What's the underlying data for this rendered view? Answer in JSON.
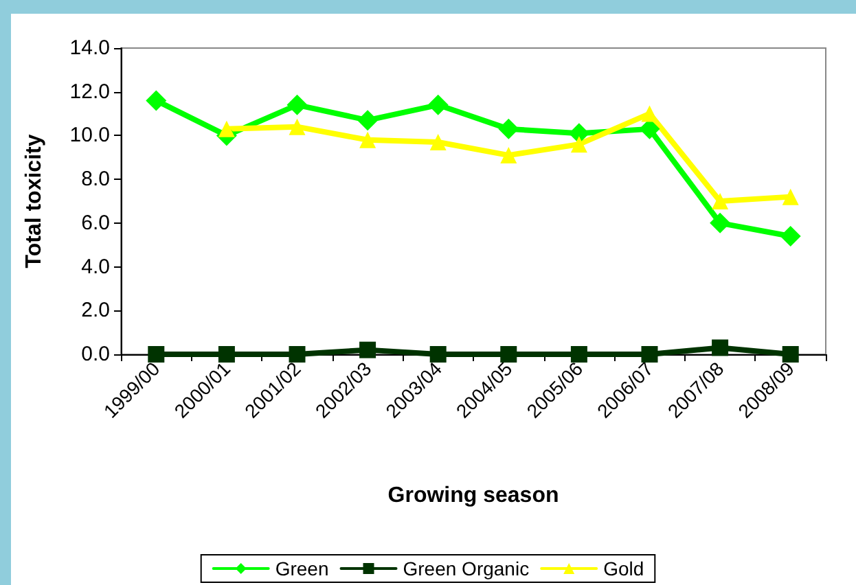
{
  "chart_data": {
    "type": "line",
    "xlabel": "Growing season",
    "ylabel": "Total toxicity",
    "categories": [
      "1999/00",
      "2000/01",
      "2001/02",
      "2002/03",
      "2003/04",
      "2004/05",
      "2005/06",
      "2006/07",
      "2007/08",
      "2008/09"
    ],
    "series": [
      {
        "name": "Green",
        "color": "#00ff00",
        "marker": "diamond",
        "values": [
          11.6,
          10.0,
          11.4,
          10.7,
          11.4,
          10.3,
          10.1,
          10.3,
          6.0,
          5.4
        ]
      },
      {
        "name": "Green Organic",
        "color": "#003300",
        "marker": "square",
        "values": [
          0.0,
          0.0,
          0.0,
          0.2,
          0.0,
          0.0,
          0.0,
          0.0,
          0.3,
          0.0
        ]
      },
      {
        "name": "Gold",
        "color": "#ffff00",
        "marker": "triangle",
        "values": [
          null,
          10.3,
          10.4,
          9.8,
          9.7,
          9.1,
          9.6,
          11.0,
          7.0,
          7.2
        ]
      }
    ],
    "ylim": [
      0,
      14
    ],
    "yticks": [
      {
        "value": 0,
        "label": "0.0"
      },
      {
        "value": 2,
        "label": "2.0"
      },
      {
        "value": 4,
        "label": "4.0"
      },
      {
        "value": 6,
        "label": "6.0"
      },
      {
        "value": 8,
        "label": "8.0"
      },
      {
        "value": 10,
        "label": "10.0"
      },
      {
        "value": 12,
        "label": "12.0"
      },
      {
        "value": 14,
        "label": "14.0"
      }
    ],
    "grid": false,
    "legend": "bottom",
    "line_style": "solid"
  }
}
